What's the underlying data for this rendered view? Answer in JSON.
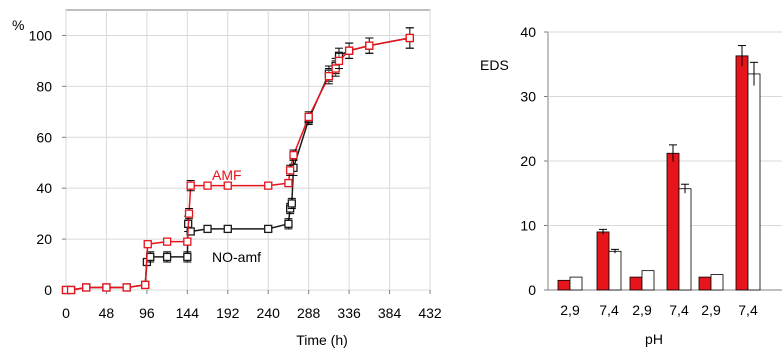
{
  "chart_data": [
    {
      "type": "line",
      "title": "",
      "xlabel": "Time (h)",
      "ylabel": "%",
      "xlim": [
        0,
        432
      ],
      "ylim": [
        0,
        110
      ],
      "x_ticks": [
        0,
        48,
        96,
        144,
        192,
        240,
        288,
        336,
        384,
        432
      ],
      "y_ticks": [
        0,
        20,
        40,
        60,
        80,
        100
      ],
      "grid": true,
      "series": [
        {
          "name": "AMF",
          "color": "#e8141c",
          "marker": "square-open",
          "x": [
            0,
            6,
            24,
            48,
            72,
            94,
            97,
            120,
            144,
            146,
            148,
            168,
            192,
            240,
            264,
            266,
            270,
            288,
            312,
            320,
            324,
            336,
            360,
            408
          ],
          "y": [
            0,
            0,
            1,
            1,
            1,
            2,
            18,
            19,
            19,
            30,
            41,
            41,
            41,
            41,
            42,
            47,
            53,
            68,
            84,
            87,
            90,
            94,
            96,
            99
          ],
          "err": [
            0,
            0,
            0,
            0,
            0,
            0,
            1,
            1,
            1,
            2,
            2,
            1,
            1,
            1,
            1,
            2,
            2,
            2,
            3,
            3,
            3,
            3,
            3,
            4
          ]
        },
        {
          "name": "NO-amf",
          "color": "#1a1a1a",
          "marker": "square-open",
          "x": [
            0,
            6,
            24,
            48,
            72,
            94,
            96,
            100,
            120,
            144,
            145,
            148,
            168,
            192,
            240,
            264,
            266,
            268,
            270,
            288,
            312,
            320,
            324,
            336,
            360,
            408
          ],
          "y": [
            0,
            0,
            1,
            1,
            1,
            2,
            11,
            13,
            13,
            13,
            26,
            23,
            24,
            24,
            24,
            26,
            32,
            34,
            48,
            67,
            85,
            88,
            92,
            94,
            96,
            99
          ],
          "err": [
            0,
            0,
            0,
            0,
            0,
            0,
            1,
            2,
            2,
            2,
            3,
            1,
            1,
            1,
            1,
            2,
            2,
            2,
            3,
            2,
            3,
            3,
            3,
            3,
            3,
            4
          ]
        }
      ]
    },
    {
      "type": "bar",
      "title": "",
      "xlabel": "pH",
      "ylabel": "EDS",
      "ylim": [
        0,
        40
      ],
      "y_ticks": [
        0,
        10,
        20,
        30,
        40
      ],
      "categories": [
        "2,9",
        "7,4",
        "2,9",
        "7,4",
        "2,9",
        "7,4"
      ],
      "grid": true,
      "series": [
        {
          "color": "#e8141c",
          "values": [
            1.5,
            9,
            2,
            21.2,
            2,
            36.3
          ],
          "err": [
            0,
            0.4,
            0,
            1.3,
            0,
            1.6
          ]
        },
        {
          "color": "#ffffff",
          "values": [
            2,
            6,
            3,
            15.7,
            2.4,
            33.5
          ],
          "err": [
            0,
            0.3,
            0,
            0.7,
            0,
            1.8
          ]
        }
      ]
    }
  ]
}
